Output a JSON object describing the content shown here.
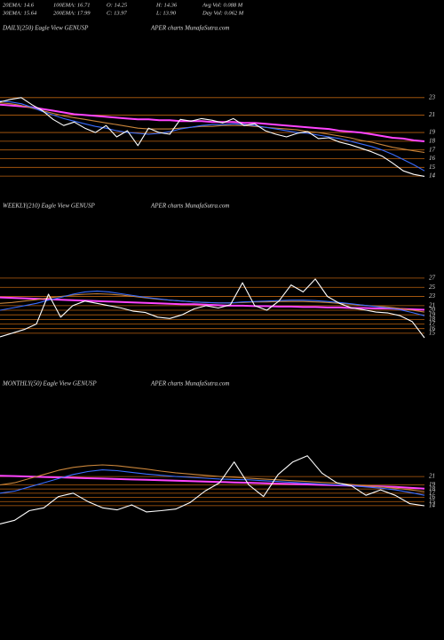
{
  "header": {
    "items": [
      "20EMA: 14.6",
      "100EMA: 16.71",
      "O: 14.25",
      "H: 14.36",
      "Avg Vol: 0.088  M",
      "30EMA: 15.64",
      "200EMA: 17.99",
      "C: 13.97",
      "L: 13.90",
      "Day Vol: 0.062  M"
    ]
  },
  "chart_data": [
    {
      "type": "line",
      "title": "DAILY(250) Eagle  View  GENUSP",
      "subtitle": "APER charts MunafaSutra.com",
      "ylim": [
        13.3,
        24
      ],
      "yticks": [
        23,
        21,
        19,
        18,
        17,
        16,
        15,
        14
      ],
      "grid": true,
      "series": [
        {
          "color": "#ff44ff",
          "values": [
            22.2,
            22.1,
            22,
            21.9,
            21.7,
            21.5,
            21.3,
            21.1,
            21,
            20.9,
            20.8,
            20.7,
            20.6,
            20.5,
            20.5,
            20.4,
            20.4,
            20.3,
            20.3,
            20.3,
            20.2,
            20.2,
            20.2,
            20.1,
            20.1,
            20,
            19.9,
            19.8,
            19.7,
            19.6,
            19.5,
            19.4,
            19.2,
            19.1,
            19,
            18.8,
            18.6,
            18.4,
            18.3,
            18.1,
            17.99
          ]
        },
        {
          "color": "#c8843a",
          "values": [
            22.4,
            22.3,
            22.1,
            21.8,
            21.5,
            21.2,
            20.9,
            20.7,
            20.5,
            20.3,
            20.1,
            19.9,
            19.7,
            19.5,
            19.4,
            19.4,
            19.4,
            19.5,
            19.6,
            19.7,
            19.7,
            19.8,
            19.8,
            19.8,
            19.7,
            19.6,
            19.5,
            19.4,
            19.3,
            19.1,
            19,
            18.8,
            18.6,
            18.4,
            18.1,
            17.9,
            17.6,
            17.3,
            17.1,
            16.9,
            16.71
          ]
        },
        {
          "color": "#3a6dff",
          "values": [
            22.6,
            22.5,
            22.3,
            21.9,
            21.4,
            21,
            20.6,
            20.3,
            20,
            19.7,
            19.5,
            19.2,
            19,
            18.9,
            18.8,
            18.9,
            19.1,
            19.4,
            19.6,
            19.8,
            19.9,
            19.9,
            20,
            19.9,
            19.8,
            19.6,
            19.4,
            19.2,
            19,
            18.9,
            18.7,
            18.5,
            18.3,
            18,
            17.7,
            17.4,
            17,
            16.5,
            15.9,
            15.3,
            14.6
          ]
        },
        {
          "color": "#ffffff",
          "values": [
            22.5,
            22.8,
            23,
            22.2,
            21.5,
            20.5,
            19.8,
            20.2,
            19.5,
            19,
            19.8,
            18.5,
            19.2,
            17.5,
            19.5,
            19,
            18.8,
            20.5,
            20.3,
            20.6,
            20.4,
            20.1,
            20.6,
            19.8,
            20,
            19.2,
            18.8,
            18.5,
            18.9,
            19.1,
            18.3,
            18.4,
            17.9,
            17.6,
            17.2,
            16.8,
            16.3,
            15.5,
            14.6,
            14.2,
            13.97
          ]
        }
      ]
    },
    {
      "type": "line",
      "title": "WEEKLY(210) Eagle  View  GENUSP",
      "subtitle": "APER charts MunafaSutra.com",
      "ylim": [
        14,
        29.5
      ],
      "yticks": [
        27,
        25,
        23,
        21,
        20,
        19,
        18,
        17,
        16,
        15
      ],
      "grid": true,
      "series": [
        {
          "color": "#ff44ff",
          "values": [
            22.8,
            22.7,
            22.6,
            22.5,
            22.4,
            22.3,
            22.2,
            22.1,
            22,
            21.9,
            21.8,
            21.7,
            21.6,
            21.5,
            21.4,
            21.3,
            21.3,
            21.2,
            21.1,
            21,
            21,
            20.9,
            20.9,
            20.8,
            20.8,
            20.7,
            20.7,
            20.6,
            20.6,
            20.5,
            20.5,
            20.4,
            20.4,
            20.3,
            20.2,
            20.1
          ]
        },
        {
          "color": "#c8843a",
          "values": [
            21.5,
            21.7,
            22,
            22.3,
            22.7,
            23,
            23.3,
            23.5,
            23.6,
            23.5,
            23.3,
            23,
            22.7,
            22.4,
            22.2,
            22,
            21.8,
            21.7,
            21.6,
            21.6,
            21.7,
            21.8,
            21.8,
            21.9,
            21.9,
            21.9,
            21.8,
            21.7,
            21.5,
            21.3,
            21.1,
            20.9,
            20.7,
            20.4,
            20,
            19.6
          ]
        },
        {
          "color": "#3a6dff",
          "values": [
            20,
            20.5,
            21,
            21.5,
            22.2,
            22.8,
            23.5,
            24,
            24.2,
            24,
            23.6,
            23.2,
            22.8,
            22.5,
            22.2,
            22,
            21.8,
            21.7,
            21.6,
            21.6,
            21.8,
            21.9,
            22,
            22.1,
            22.2,
            22.2,
            22.1,
            21.9,
            21.7,
            21.4,
            21.1,
            20.8,
            20.5,
            20.1,
            19.5,
            18.8
          ]
        },
        {
          "color": "#ffffff",
          "values": [
            14.2,
            15,
            15.8,
            17,
            23.5,
            18.5,
            21,
            22,
            21.5,
            21,
            20.5,
            19.8,
            19.5,
            18.5,
            18.2,
            19,
            20.3,
            21,
            20.5,
            21.2,
            26,
            21,
            20,
            22,
            25.5,
            24,
            26.8,
            23,
            21.5,
            20.5,
            20.1,
            19.6,
            19.4,
            18.8,
            17.5,
            14
          ]
        }
      ]
    },
    {
      "type": "line",
      "title": "MONTHLY(50) Eagle  View  GENUSP",
      "subtitle": "APER charts MunafaSutra.com",
      "ylim": [
        9.5,
        28.7
      ],
      "yticks": [
        21,
        19,
        18,
        17,
        16,
        15,
        14
      ],
      "grid": true,
      "series": [
        {
          "color": "#ff44ff",
          "values": [
            21.2,
            21.1,
            21,
            20.9,
            20.8,
            20.7,
            20.6,
            20.5,
            20.4,
            20.3,
            20.2,
            20.1,
            20,
            19.9,
            19.8,
            19.7,
            19.6,
            19.5,
            19.4,
            19.3,
            19.2,
            19.1,
            19,
            18.9,
            18.8,
            18.7,
            18.6,
            18.5,
            18.3,
            18.1
          ]
        },
        {
          "color": "#c8843a",
          "values": [
            19,
            19.5,
            20.5,
            21.5,
            22.5,
            23.2,
            23.6,
            23.8,
            23.6,
            23.2,
            22.8,
            22.3,
            21.9,
            21.6,
            21.3,
            21,
            20.8,
            20.6,
            20.4,
            20.2,
            20,
            19.8,
            19.6,
            19.4,
            19.1,
            18.8,
            18.5,
            18.2,
            17.8,
            17.4
          ]
        },
        {
          "color": "#3a6dff",
          "values": [
            17,
            17.5,
            18.5,
            19.5,
            20.5,
            21.5,
            22.2,
            22.6,
            22.4,
            22,
            21.6,
            21.3,
            21,
            20.8,
            20.6,
            20.4,
            20.3,
            20.2,
            20,
            19.8,
            19.6,
            19.4,
            19.2,
            19,
            18.8,
            18.5,
            18.2,
            17.8,
            17.2,
            16.5
          ]
        },
        {
          "color": "#ffffff",
          "values": [
            9.6,
            10.5,
            12.8,
            13.5,
            16.2,
            17,
            15,
            13.5,
            13,
            14.2,
            12.5,
            12.8,
            13.2,
            14.8,
            17.5,
            19.5,
            24.5,
            19,
            16.2,
            21.5,
            24.5,
            26,
            21.8,
            19.5,
            18.8,
            16.5,
            17.8,
            16.5,
            14.5,
            13.97
          ]
        }
      ]
    }
  ]
}
